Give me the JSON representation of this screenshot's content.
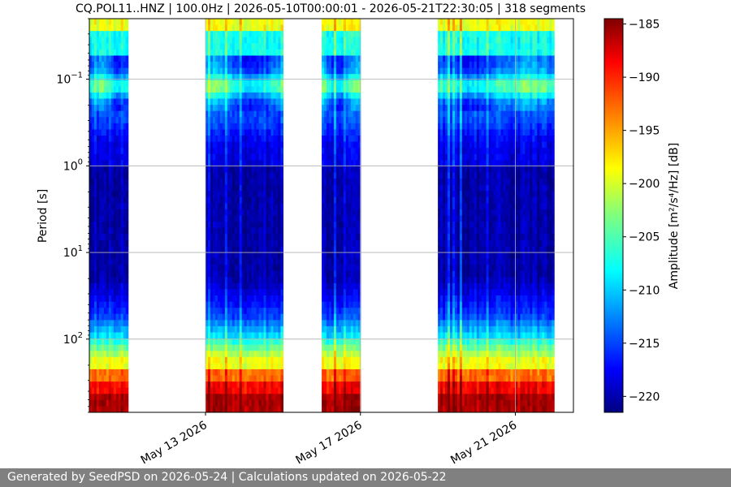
{
  "chart_data": {
    "type": "heatmap",
    "title": "CQ.POL11..HNZ | 100.0Hz | 2026-05-10T00:00:01 - 2026-05-21T22:30:05 | 318 segments",
    "ylabel": "Period [s]",
    "yscale": "log",
    "yaxis_inverted": true,
    "ylim": [
      0.02,
      700
    ],
    "yticks": [
      {
        "value": 0.1,
        "base": "10",
        "exp": "−1"
      },
      {
        "value": 1,
        "base": "10",
        "exp": "0"
      },
      {
        "value": 10,
        "base": "10",
        "exp": "1"
      },
      {
        "value": 100,
        "base": "10",
        "exp": "2"
      }
    ],
    "xaxis": {
      "type": "date",
      "xlim": [
        "2026-05-10T00:00:00",
        "2026-05-22T12:00:00"
      ]
    },
    "xticks": [
      {
        "date": "2026-05-13",
        "label": "May 13 2026"
      },
      {
        "date": "2026-05-17",
        "label": "May 17 2026"
      },
      {
        "date": "2026-05-21",
        "label": "May 21 2026"
      }
    ],
    "grid": true,
    "data_blocks": [
      {
        "start": "2026-05-10T00:00:00",
        "end": "2026-05-11T00:00:00"
      },
      {
        "start": "2026-05-13T00:00:00",
        "end": "2026-05-15T00:00:00"
      },
      {
        "start": "2026-05-16T00:00:00",
        "end": "2026-05-17T00:00:00"
      },
      {
        "start": "2026-05-19T00:00:00",
        "end": "2026-05-22T00:00:00"
      }
    ],
    "colorbar": {
      "label": "Amplitude [m²/s⁴/Hz] [dB]",
      "colormap": "jet",
      "range": [
        -221.5,
        -184.5
      ],
      "ticks": [
        -185,
        -190,
        -195,
        -200,
        -205,
        -210,
        -215,
        -220
      ]
    }
  },
  "footer": {
    "text": "Generated by SeedPSD on 2026-05-24 | Calculations updated on 2026-05-22"
  }
}
